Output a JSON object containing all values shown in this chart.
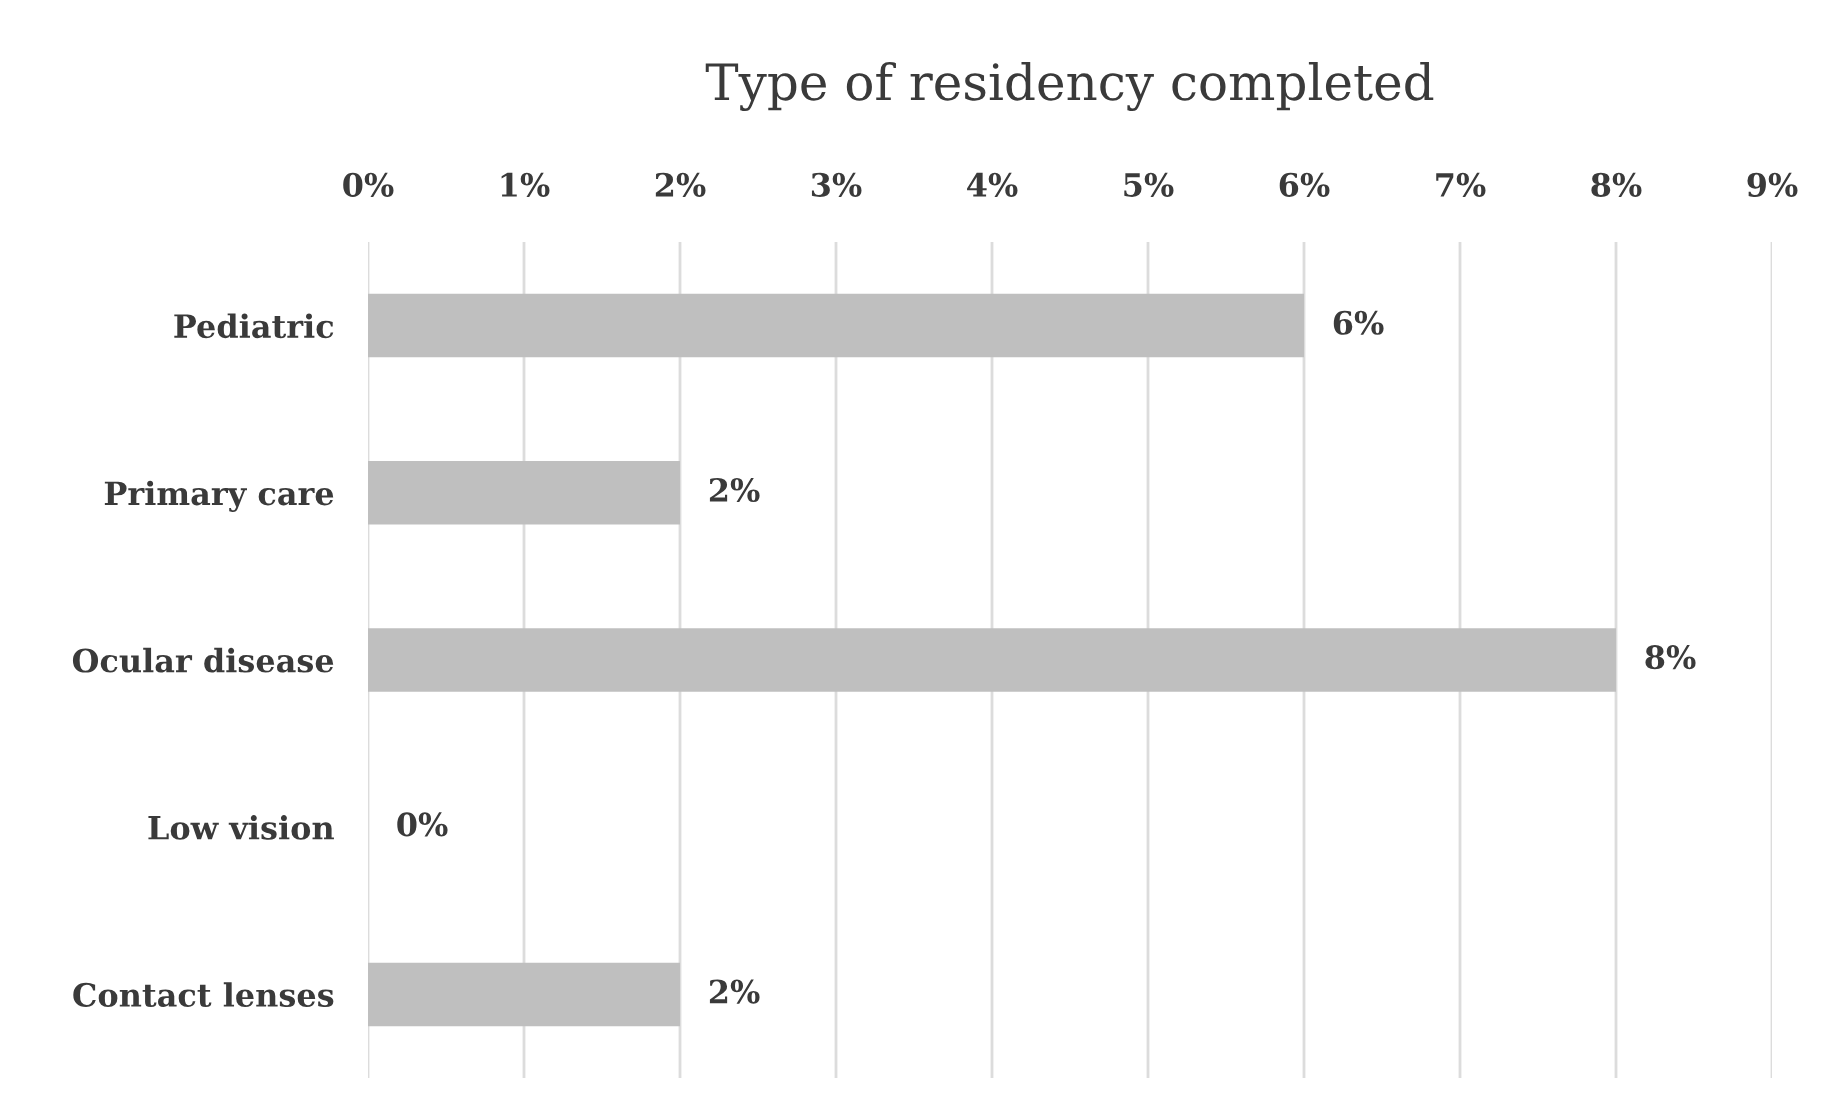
{
  "chart_data": {
    "type": "bar",
    "orientation": "horizontal",
    "title": "Type of residency completed",
    "categories": [
      "Pediatric",
      "Primary care",
      "Ocular disease",
      "Low vision",
      "Contact lenses"
    ],
    "values": [
      6,
      2,
      8,
      0,
      2
    ],
    "color": "#bfbfbf",
    "value_labels": [
      "6%",
      "2%",
      "8%",
      "0%",
      "2%"
    ],
    "xlim": [
      0,
      9
    ],
    "xticks": [
      {
        "value": 0,
        "label": "0%"
      },
      {
        "value": 1,
        "label": "1%"
      },
      {
        "value": 2,
        "label": "2%"
      },
      {
        "value": 3,
        "label": "3%"
      },
      {
        "value": 4,
        "label": "4%"
      },
      {
        "value": 5,
        "label": "5%"
      },
      {
        "value": 6,
        "label": "6%"
      },
      {
        "value": 7,
        "label": "7%"
      },
      {
        "value": 8,
        "label": "8%"
      },
      {
        "value": 9,
        "label": "9%"
      }
    ],
    "grid": "x"
  }
}
